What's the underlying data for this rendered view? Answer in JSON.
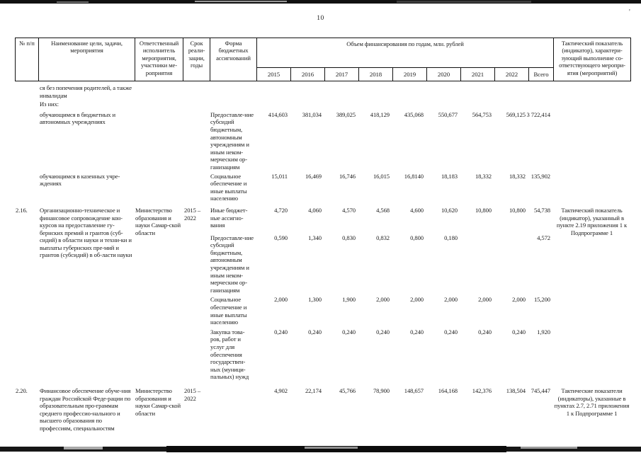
{
  "page": {
    "number": "10"
  },
  "table": {
    "header": {
      "col_num": "№ п/п",
      "col_name": "Наименование цели, задачи, мероприятия",
      "col_executor": "Ответственный исполнитель мероприятия, участники ме-роприятия",
      "col_period": "Срок реали-зации, годы",
      "col_form": "Форма бюджетных ассигнований",
      "col_finance_group": "Объем финансирования по годам, млн. рублей",
      "years": [
        "2015",
        "2016",
        "2017",
        "2018",
        "2019",
        "2020",
        "2021",
        "2022",
        "Всего"
      ],
      "col_indicator": "Тактический показатель (индикатор), характери-зующий выполнение со-ответствующего меропри-ятия (мероприятий)"
    },
    "rows": [
      {
        "num": "",
        "name": "ся без попечения родителей, а также инвалидам",
        "executor": "",
        "period": "",
        "form": "",
        "values": [
          "",
          "",
          "",
          "",
          "",
          "",
          "",
          "",
          ""
        ],
        "indicator": ""
      },
      {
        "num": "",
        "name": "Из них:",
        "executor": "",
        "period": "",
        "form": "",
        "values": [
          "",
          "",
          "",
          "",
          "",
          "",
          "",
          "",
          ""
        ],
        "indicator": ""
      },
      {
        "num": "",
        "name": "обучающимся в бюджетных и автономных учреждениях",
        "executor": "",
        "period": "",
        "form": "Предоставле-ние субсидий бюджетным, автономным учреждениям и иным неком-мерческим ор-ганизациям",
        "values": [
          "414,603",
          "381,034",
          "389,025",
          "418,129",
          "435,068",
          "550,677",
          "564,753",
          "569,125",
          "3 722,414"
        ],
        "indicator": ""
      },
      {
        "num": "",
        "name": "обучающимся в казенных учре-ждениях",
        "executor": "",
        "period": "",
        "form": "Социальное обеспечение и иные выплаты населению",
        "values": [
          "15,011",
          "16,469",
          "16,746",
          "16,015",
          "16,8140",
          "18,183",
          "18,332",
          "18,332",
          "135,902"
        ],
        "indicator": ""
      },
      {
        "num": "2.16.",
        "name": "Организационно-техническое и финансовое сопровождение кон-курсов на предоставление гу-бернских премий и грантов (суб-сидий) в области науки и техни-ки и выплаты губернских пре-мий и грантов (субсидий) в об-ласти науки",
        "executor": "Министерство образования и науки Самар-ской области",
        "period": "2015 – 2022",
        "form": "Иные бюджет-ные ассигно-вания",
        "values": [
          "4,720",
          "4,060",
          "4,570",
          "4,568",
          "4,600",
          "10,620",
          "10,800",
          "10,800",
          "54,738"
        ],
        "indicator": "Тактический показатель (индикатор), указанный в пункте 2.19 приложения 1 к Подпрограмме 1"
      },
      {
        "num": "",
        "name": "",
        "executor": "",
        "period": "",
        "form": "Предоставле-ние субсидий бюджетным, автономным учреждениям и иным неком-мерческим ор-ганизациям",
        "values": [
          "0,590",
          "1,340",
          "0,830",
          "0,832",
          "0,800",
          "0,180",
          "",
          "",
          "4,572"
        ],
        "indicator": ""
      },
      {
        "num": "",
        "name": "",
        "executor": "",
        "period": "",
        "form": "Социальное обеспечение и иные выплаты населению",
        "values": [
          "2,000",
          "1,300",
          "1,900",
          "2,000",
          "2,000",
          "2,000",
          "2,000",
          "2,000",
          "15,200"
        ],
        "indicator": ""
      },
      {
        "num": "",
        "name": "",
        "executor": "",
        "period": "",
        "form": "Закупка това-ров, работ и услуг для обеспечения государствен-ных (муници-пальных) нужд",
        "values": [
          "0,240",
          "0,240",
          "0,240",
          "0,240",
          "0,240",
          "0,240",
          "0,240",
          "0,240",
          "1,920"
        ],
        "indicator": ""
      },
      {
        "num": "2.20.",
        "name": "Финансовое обеспечение обуче-ния граждан Российской Феде-рации по образовательным про-граммам среднего профессио-нального и высшего образования по профессиям, специальностям",
        "executor": "Министерство образования и науки Самар-ской области",
        "period": "2015 – 2022",
        "form": "",
        "values": [
          "4,902",
          "22,174",
          "45,766",
          "78,900",
          "148,657",
          "164,168",
          "142,376",
          "138,504",
          "745,447"
        ],
        "indicator": "Тактические показатели (индикаторы), указанные в пунктах 2.7, 2.71 приложения 1 к Подпрограмме 1"
      }
    ]
  }
}
